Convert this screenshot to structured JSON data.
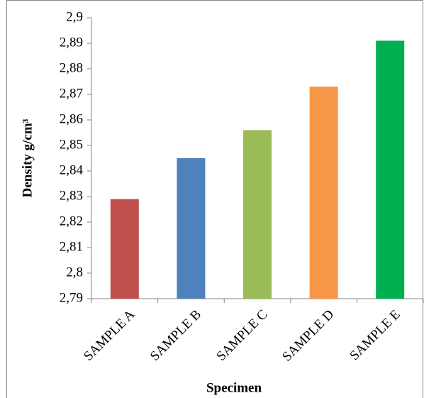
{
  "chart_data": {
    "type": "bar",
    "x_label": "Specimen",
    "y_label": "Density g/cm³",
    "categories": [
      "SAMPLE A",
      "SAMPLE B",
      "SAMPLE C",
      "SAMPLE D",
      "SAMPLE E"
    ],
    "values": [
      2.829,
      2.845,
      2.856,
      2.873,
      2.891
    ],
    "colors": [
      "#c0504d",
      "#4f81bd",
      "#9bbb59",
      "#f79646",
      "#00b050"
    ],
    "ylim": [
      2.79,
      2.9
    ],
    "yticks": [
      {
        "value": 2.79,
        "label": "2,79"
      },
      {
        "value": 2.8,
        "label": "2,8"
      },
      {
        "value": 2.81,
        "label": "2,81"
      },
      {
        "value": 2.82,
        "label": "2,82"
      },
      {
        "value": 2.83,
        "label": "2,83"
      },
      {
        "value": 2.84,
        "label": "2,84"
      },
      {
        "value": 2.85,
        "label": "2,85"
      },
      {
        "value": 2.86,
        "label": "2,86"
      },
      {
        "value": 2.87,
        "label": "2,87"
      },
      {
        "value": 2.88,
        "label": "2,88"
      },
      {
        "value": 2.89,
        "label": "2,89"
      },
      {
        "value": 2.9,
        "label": "2,9"
      }
    ],
    "grid": false
  }
}
